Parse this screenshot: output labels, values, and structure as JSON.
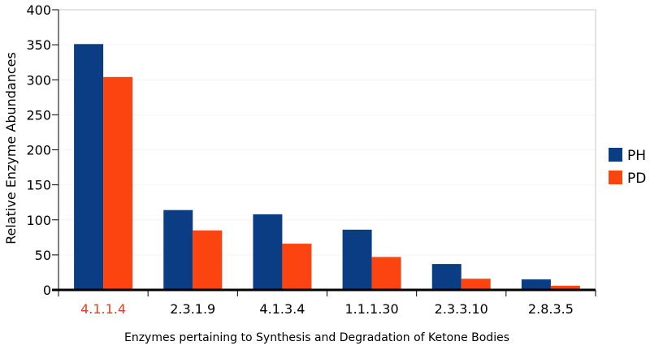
{
  "chart_data": {
    "type": "bar",
    "title": "",
    "xlabel": "Enzymes pertaining to Synthesis and Degradation of Ketone Bodies",
    "ylabel": "Relative Enzyme Abundances",
    "ylim": [
      0,
      400
    ],
    "yticks": [
      0,
      50,
      100,
      150,
      200,
      250,
      300,
      350,
      400
    ],
    "ytick_labels": [
      "0",
      "50",
      "100",
      "150",
      "200",
      "250",
      "300",
      "350",
      "400"
    ],
    "categories": [
      "4.1.1.4",
      "2.3.1.9",
      "4.1.3.4",
      "1.1.1.30",
      "2.3.3.10",
      "2.8.3.5"
    ],
    "highlighted_category": "4.1.1.4",
    "highlight_color": "#e0401c",
    "series": [
      {
        "name": "PH",
        "color": "#0b3d85",
        "values": [
          351,
          114,
          108,
          86,
          37,
          15
        ]
      },
      {
        "name": "PD",
        "color": "#fc4411",
        "values": [
          304,
          85,
          66,
          47,
          16,
          6
        ]
      }
    ],
    "grid": true,
    "legend_position": "right"
  }
}
